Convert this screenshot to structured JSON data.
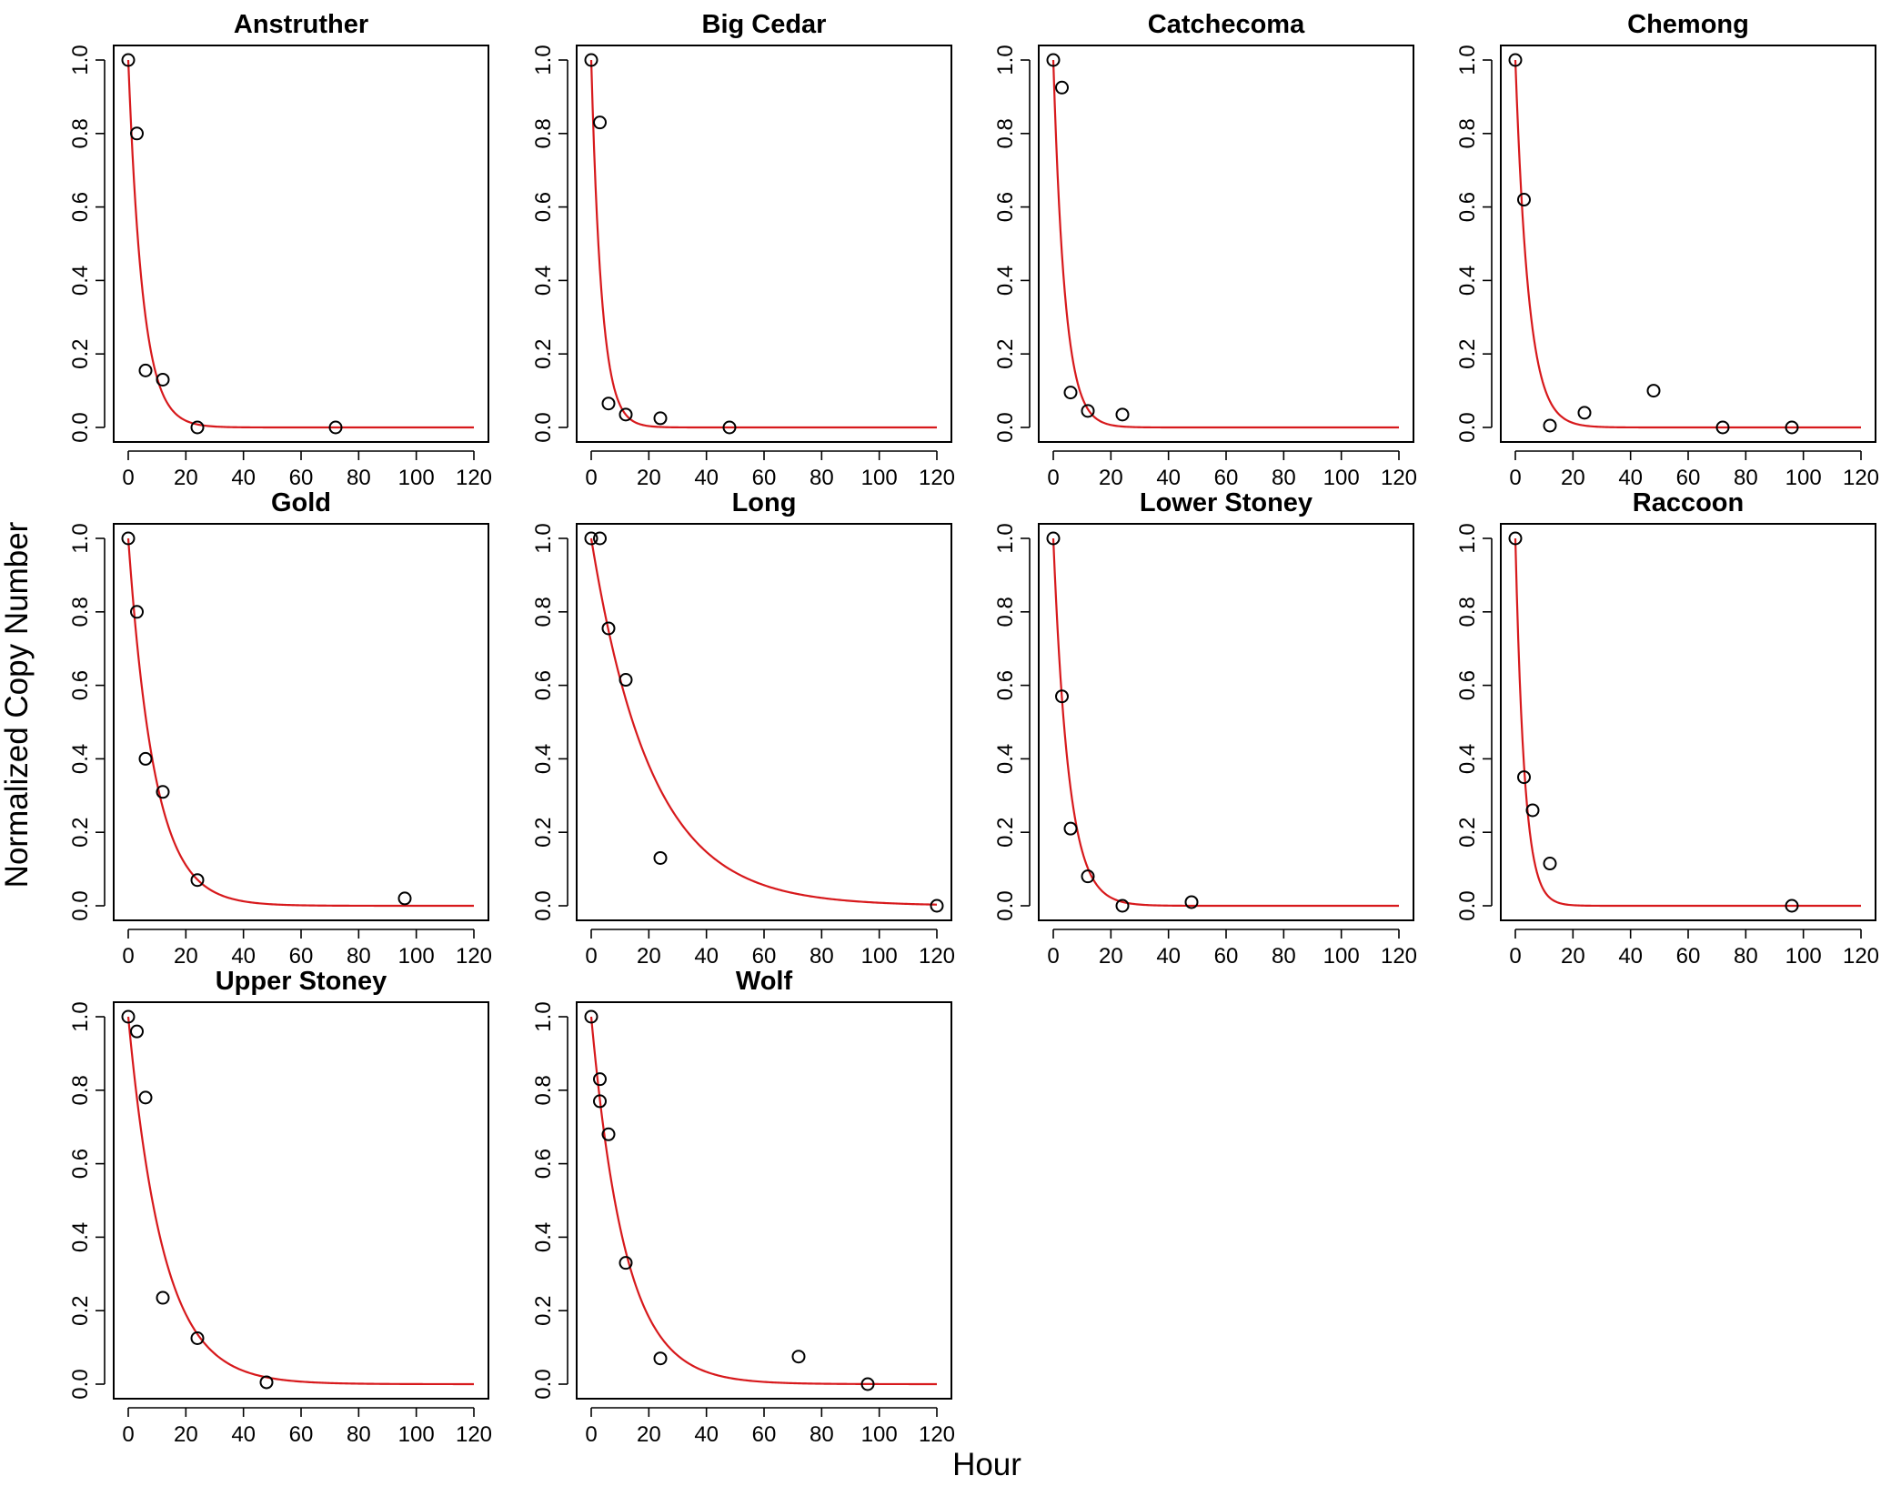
{
  "figure": {
    "ylabel": "Normalized Copy Number",
    "xlabel": "Hour"
  },
  "chart_data": [
    {
      "type": "scatter",
      "title": "Anstruther",
      "xlim": [
        0,
        120
      ],
      "ylim": [
        0,
        1
      ],
      "xticks": [
        0,
        20,
        40,
        60,
        80,
        100,
        120
      ],
      "yticks": [
        0.0,
        0.2,
        0.4,
        0.6,
        0.8,
        1.0
      ],
      "x": [
        0,
        3,
        6,
        12,
        24,
        72
      ],
      "y": [
        1.0,
        0.8,
        0.155,
        0.13,
        0.0,
        0.0
      ],
      "fit": {
        "type": "exponential_decay",
        "k": 0.2,
        "color": "#d7191c"
      }
    },
    {
      "type": "scatter",
      "title": "Big Cedar",
      "xlim": [
        0,
        120
      ],
      "ylim": [
        0,
        1
      ],
      "xticks": [
        0,
        20,
        40,
        60,
        80,
        100,
        120
      ],
      "yticks": [
        0.0,
        0.2,
        0.4,
        0.6,
        0.8,
        1.0
      ],
      "x": [
        0,
        3,
        6,
        12,
        24,
        48
      ],
      "y": [
        1.0,
        0.83,
        0.065,
        0.035,
        0.025,
        0.0
      ],
      "fit": {
        "type": "exponential_decay",
        "k": 0.28,
        "color": "#d7191c"
      }
    },
    {
      "type": "scatter",
      "title": "Catchecoma",
      "xlim": [
        0,
        120
      ],
      "ylim": [
        0,
        1
      ],
      "xticks": [
        0,
        20,
        40,
        60,
        80,
        100,
        120
      ],
      "yticks": [
        0.0,
        0.2,
        0.4,
        0.6,
        0.8,
        1.0
      ],
      "x": [
        0,
        3,
        6,
        12,
        24
      ],
      "y": [
        1.0,
        0.925,
        0.095,
        0.045,
        0.035
      ],
      "fit": {
        "type": "exponential_decay",
        "k": 0.25,
        "color": "#d7191c"
      }
    },
    {
      "type": "scatter",
      "title": "Chemong",
      "xlim": [
        0,
        120
      ],
      "ylim": [
        0,
        1
      ],
      "xticks": [
        0,
        20,
        40,
        60,
        80,
        100,
        120
      ],
      "yticks": [
        0.0,
        0.2,
        0.4,
        0.6,
        0.8,
        1.0
      ],
      "x": [
        0,
        3,
        12,
        24,
        48,
        72,
        96
      ],
      "y": [
        1.0,
        0.62,
        0.005,
        0.04,
        0.1,
        0.0,
        0.0
      ],
      "fit": {
        "type": "exponential_decay",
        "k": 0.22,
        "color": "#d7191c"
      }
    },
    {
      "type": "scatter",
      "title": "Gold",
      "xlim": [
        0,
        120
      ],
      "ylim": [
        0,
        1
      ],
      "xticks": [
        0,
        20,
        40,
        60,
        80,
        100,
        120
      ],
      "yticks": [
        0.0,
        0.2,
        0.4,
        0.6,
        0.8,
        1.0
      ],
      "x": [
        0,
        3,
        6,
        12,
        24,
        96
      ],
      "y": [
        1.0,
        0.8,
        0.4,
        0.31,
        0.07,
        0.02
      ],
      "fit": {
        "type": "exponential_decay",
        "k": 0.11,
        "color": "#d7191c"
      }
    },
    {
      "type": "scatter",
      "title": "Long",
      "xlim": [
        0,
        120
      ],
      "ylim": [
        0,
        1
      ],
      "xticks": [
        0,
        20,
        40,
        60,
        80,
        100,
        120
      ],
      "yticks": [
        0.0,
        0.2,
        0.4,
        0.6,
        0.8,
        1.0
      ],
      "x": [
        0,
        3,
        6,
        12,
        24,
        120
      ],
      "y": [
        1.0,
        1.0,
        0.755,
        0.615,
        0.13,
        0.0
      ],
      "fit": {
        "type": "exponential_decay",
        "k": 0.048,
        "color": "#d7191c"
      }
    },
    {
      "type": "scatter",
      "title": "Lower Stoney",
      "xlim": [
        0,
        120
      ],
      "ylim": [
        0,
        1
      ],
      "xticks": [
        0,
        20,
        40,
        60,
        80,
        100,
        120
      ],
      "yticks": [
        0.0,
        0.2,
        0.4,
        0.6,
        0.8,
        1.0
      ],
      "x": [
        0,
        3,
        6,
        12,
        24,
        48
      ],
      "y": [
        1.0,
        0.57,
        0.21,
        0.08,
        0.0,
        0.01
      ],
      "fit": {
        "type": "exponential_decay",
        "k": 0.19,
        "color": "#d7191c"
      }
    },
    {
      "type": "scatter",
      "title": "Raccoon",
      "xlim": [
        0,
        120
      ],
      "ylim": [
        0,
        1
      ],
      "xticks": [
        0,
        20,
        40,
        60,
        80,
        100,
        120
      ],
      "yticks": [
        0.0,
        0.2,
        0.4,
        0.6,
        0.8,
        1.0
      ],
      "x": [
        0,
        3,
        6,
        12,
        96
      ],
      "y": [
        1.0,
        0.35,
        0.26,
        0.115,
        0.0
      ],
      "fit": {
        "type": "exponential_decay",
        "k": 0.32,
        "color": "#d7191c"
      }
    },
    {
      "type": "scatter",
      "title": "Upper Stoney",
      "xlim": [
        0,
        120
      ],
      "ylim": [
        0,
        1
      ],
      "xticks": [
        0,
        20,
        40,
        60,
        80,
        100,
        120
      ],
      "yticks": [
        0.0,
        0.2,
        0.4,
        0.6,
        0.8,
        1.0
      ],
      "x": [
        0,
        3,
        6,
        12,
        24,
        48
      ],
      "y": [
        1.0,
        0.96,
        0.78,
        0.235,
        0.125,
        0.005
      ],
      "fit": {
        "type": "exponential_decay",
        "k": 0.083,
        "color": "#d7191c"
      }
    },
    {
      "type": "scatter",
      "title": "Wolf",
      "xlim": [
        0,
        120
      ],
      "ylim": [
        0,
        1
      ],
      "xticks": [
        0,
        20,
        40,
        60,
        80,
        100,
        120
      ],
      "yticks": [
        0.0,
        0.2,
        0.4,
        0.6,
        0.8,
        1.0
      ],
      "x": [
        0,
        3,
        3,
        6,
        12,
        24,
        72,
        96
      ],
      "y": [
        1.0,
        0.83,
        0.77,
        0.68,
        0.33,
        0.07,
        0.075,
        0.0
      ],
      "fit": {
        "type": "exponential_decay",
        "k": 0.085,
        "color": "#d7191c"
      }
    }
  ]
}
